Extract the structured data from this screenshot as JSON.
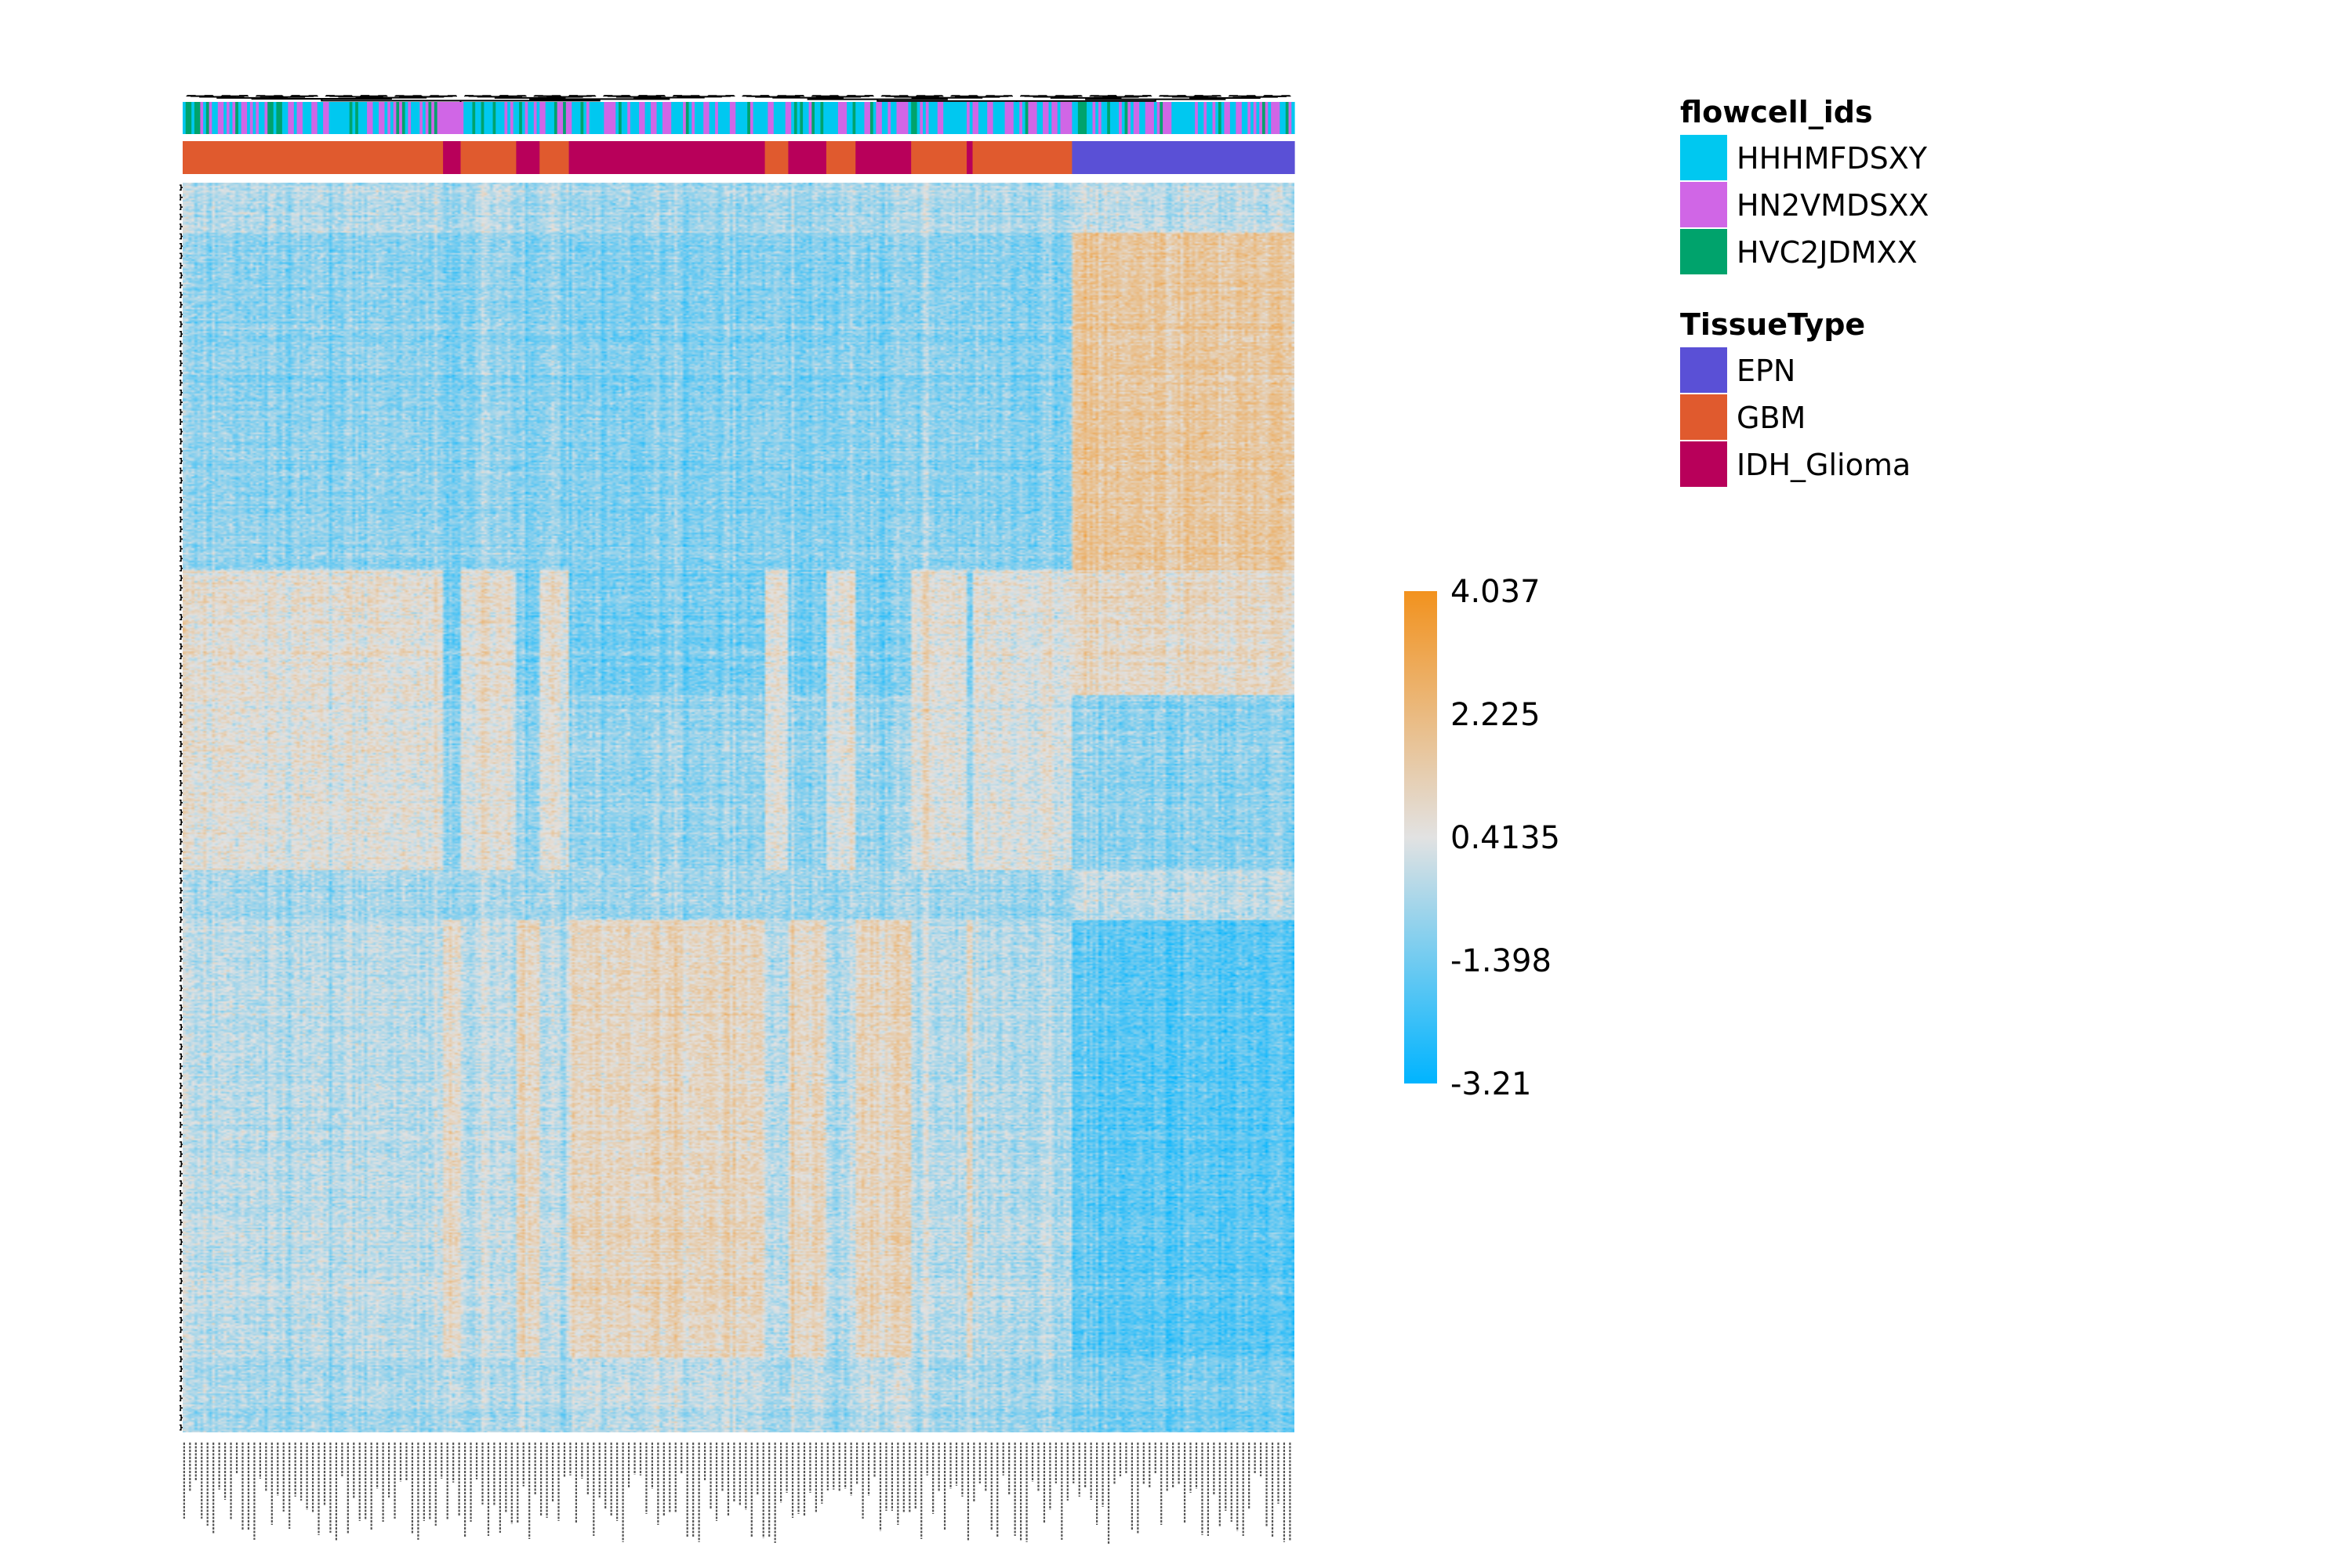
{
  "chart_data": {
    "type": "heatmap",
    "title": "",
    "xlabel": "",
    "ylabel": "",
    "n_columns": 380,
    "n_rows": 800,
    "row_dendrogram": true,
    "column_dendrogram": true,
    "column_labels_legible": false,
    "row_labels_shown": false,
    "color_scale": {
      "min": -3.21,
      "max": 4.037,
      "ticks": [
        "4.037",
        "2.225",
        "0.4135",
        "-1.398",
        "-3.21"
      ],
      "low_color": "#00b4ff",
      "mid_color": "#e2e2e2",
      "high_color": "#f2921e"
    },
    "annotations": [
      {
        "name": "flowcell_ids",
        "levels": [
          {
            "label": "HHHMFDSXY",
            "color": "#00c8f0"
          },
          {
            "label": "HN2VMDSXX",
            "color": "#d066e6"
          },
          {
            "label": "HVC2JDMXX",
            "color": "#00a36c"
          }
        ]
      },
      {
        "name": "TissueType",
        "levels": [
          {
            "label": "EPN",
            "color": "#5a50d6"
          },
          {
            "label": "GBM",
            "color": "#e05a2e"
          },
          {
            "label": "IDH_Glioma",
            "color": "#b8005a"
          }
        ],
        "column_order_blocks": [
          {
            "level": "GBM",
            "fraction": 0.235
          },
          {
            "level": "IDH_Glioma",
            "fraction": 0.015
          },
          {
            "level": "GBM",
            "fraction": 0.05
          },
          {
            "level": "IDH_Glioma",
            "fraction": 0.02
          },
          {
            "level": "GBM",
            "fraction": 0.025
          },
          {
            "level": "IDH_Glioma",
            "fraction": 0.175
          },
          {
            "level": "GBM",
            "fraction": 0.02
          },
          {
            "level": "IDH_Glioma",
            "fraction": 0.035
          },
          {
            "level": "GBM",
            "fraction": 0.025
          },
          {
            "level": "IDH_Glioma",
            "fraction": 0.05
          },
          {
            "level": "GBM",
            "fraction": 0.05
          },
          {
            "level": "IDH_Glioma",
            "fraction": 0.005
          },
          {
            "level": "GBM",
            "fraction": 0.09
          },
          {
            "level": "EPN",
            "fraction": 0.205
          }
        ]
      }
    ],
    "legend_placement": "right"
  }
}
